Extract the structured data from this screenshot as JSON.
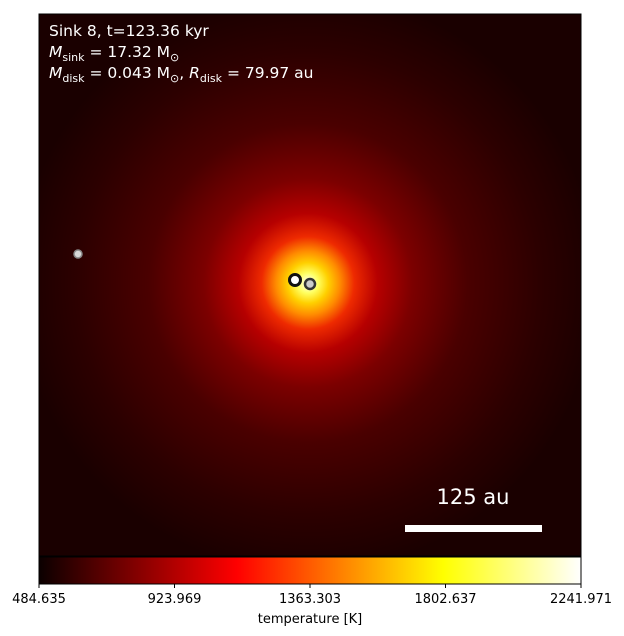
{
  "chart_data": {
    "type": "heatmap",
    "annotations": {
      "line1": "Sink 8, t=123.36 kyr",
      "line2_prefix": "M",
      "line2_sub": "sink",
      "line2_rest": " = 17.32 M",
      "line2_sun": "⊙",
      "line3_prefix": "M",
      "line3_sub": "disk",
      "line3_mid": " = 0.043 M",
      "line3_sun": "⊙",
      "line3_sep": ", ",
      "line3_r": "R",
      "line3_rsub": "disk",
      "line3_rest": " = 79.97 au"
    },
    "scale_bar": {
      "label": "125 au",
      "length_au": 125
    },
    "colorbar": {
      "label": "temperature [K]",
      "colormap": "hot",
      "range": [
        484.635,
        2241.971
      ],
      "ticks": [
        "484.635",
        "923.969",
        "1363.303",
        "1802.637",
        "2241.971"
      ]
    },
    "sinks": [
      {
        "name": "sink-main"
      },
      {
        "name": "sink-companion"
      },
      {
        "name": "sink-distant"
      }
    ]
  }
}
